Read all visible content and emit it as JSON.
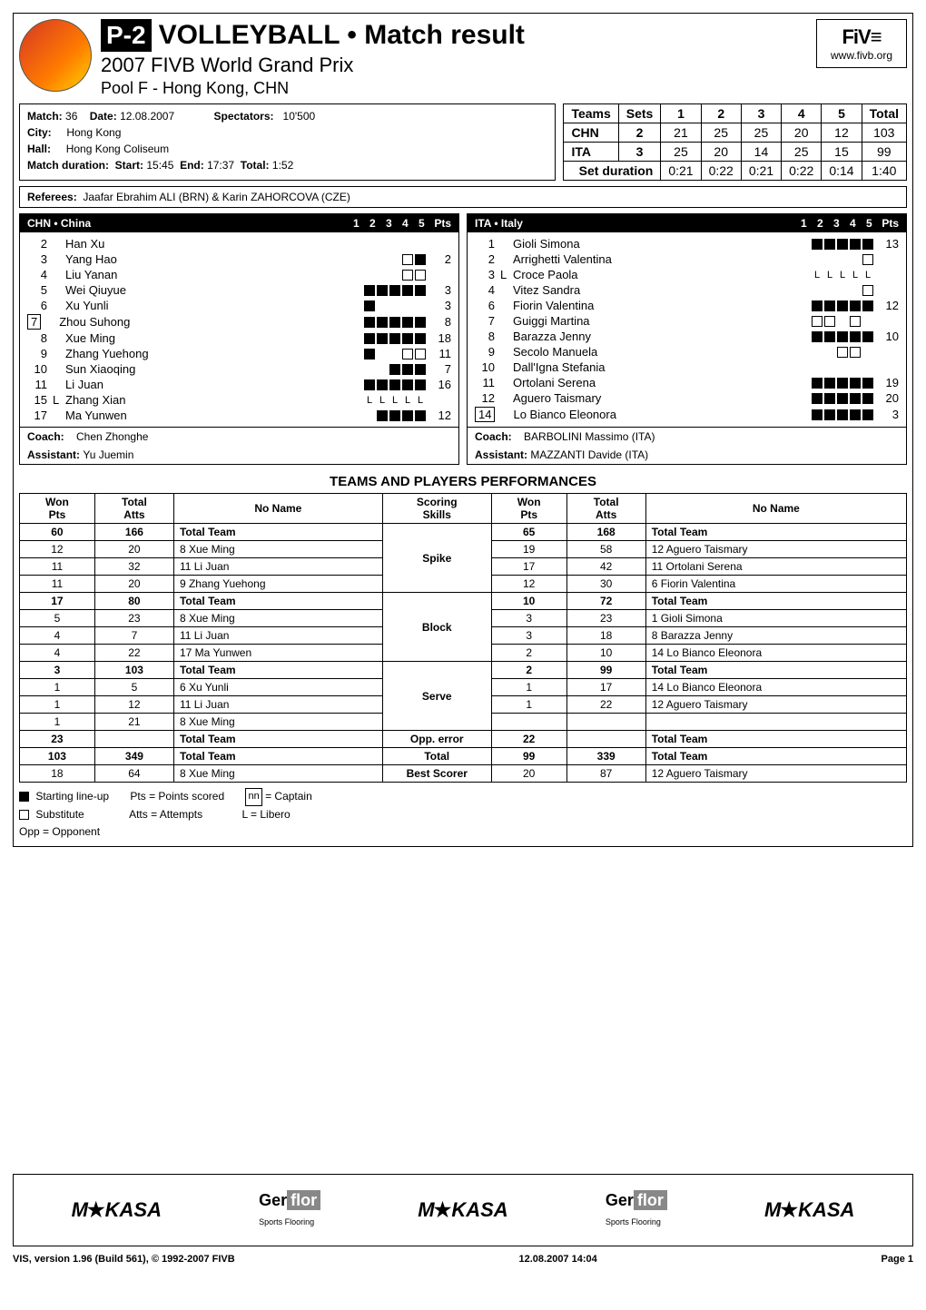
{
  "header": {
    "badge": "P-2",
    "title": "VOLLEYBALL • Match result",
    "subtitle": "2007 FIVB World Grand Prix",
    "pool": "Pool F - Hong Kong, CHN",
    "fivb_url": "www.fivb.org",
    "fivb_mark": "FiV≡"
  },
  "match_info": {
    "match_label": "Match:",
    "match_no": "36",
    "date_label": "Date:",
    "date": "12.08.2007",
    "spectators_label": "Spectators:",
    "spectators": "10'500",
    "city_label": "City:",
    "city": "Hong Kong",
    "hall_label": "Hall:",
    "hall": "Hong Kong Coliseum",
    "duration_label": "Match duration:",
    "start_label": "Start:",
    "start": "15:45",
    "end_label": "End:",
    "end": "17:37",
    "total_label": "Total:",
    "total": "1:52"
  },
  "score": {
    "cols": [
      "Teams",
      "Sets",
      "1",
      "2",
      "3",
      "4",
      "5",
      "Total"
    ],
    "rows": [
      {
        "team": "CHN",
        "sets": "2",
        "s": [
          "21",
          "25",
          "25",
          "20",
          "12"
        ],
        "total": "103"
      },
      {
        "team": "ITA",
        "sets": "3",
        "s": [
          "25",
          "20",
          "14",
          "25",
          "15"
        ],
        "total": "99"
      }
    ],
    "dur_label": "Set duration",
    "dur": [
      "0:21",
      "0:22",
      "0:21",
      "0:22",
      "0:14"
    ],
    "dur_total": "1:40"
  },
  "referees": {
    "label": "Referees:",
    "text": "Jaafar Ebrahim ALI (BRN) & Karin ZAHORCOVA (CZE)"
  },
  "team_chn": {
    "title": "CHN • China",
    "set_hdr": "1 2 3 4 5",
    "pts_hdr": "Pts",
    "players": [
      {
        "n": "2",
        "name": "Han Xu",
        "marks": [
          "",
          "",
          "",
          "",
          ""
        ],
        "pts": ""
      },
      {
        "n": "3",
        "name": "Yang Hao",
        "marks": [
          "",
          "",
          "",
          "S",
          "F"
        ],
        "pts": "2"
      },
      {
        "n": "4",
        "name": "Liu Yanan",
        "marks": [
          "",
          "",
          "",
          "S",
          "S"
        ],
        "pts": ""
      },
      {
        "n": "5",
        "name": "Wei Qiuyue",
        "marks": [
          "F",
          "F",
          "F",
          "F",
          "F"
        ],
        "pts": "3"
      },
      {
        "n": "6",
        "name": "Xu Yunli",
        "marks": [
          "F",
          "",
          "",
          "",
          ""
        ],
        "pts": "3"
      },
      {
        "n": "7",
        "captain": true,
        "name": "Zhou Suhong",
        "marks": [
          "F",
          "F",
          "F",
          "F",
          "F"
        ],
        "pts": "8"
      },
      {
        "n": "8",
        "name": "Xue Ming",
        "marks": [
          "F",
          "F",
          "F",
          "F",
          "F"
        ],
        "pts": "18"
      },
      {
        "n": "9",
        "name": "Zhang Yuehong",
        "marks": [
          "F",
          "",
          "",
          "S",
          "S"
        ],
        "pts": "11"
      },
      {
        "n": "10",
        "name": "Sun Xiaoqing",
        "marks": [
          "",
          "",
          "F",
          "F",
          "F"
        ],
        "pts": "7"
      },
      {
        "n": "11",
        "name": "Li Juan",
        "marks": [
          "F",
          "F",
          "F",
          "F",
          "F"
        ],
        "pts": "16"
      },
      {
        "n": "15",
        "lib": true,
        "name": "Zhang Xian",
        "marks": [
          "L",
          "L",
          "L",
          "L",
          "L"
        ],
        "pts": ""
      },
      {
        "n": "17",
        "name": "Ma Yunwen",
        "marks": [
          "",
          "F",
          "F",
          "F",
          "F"
        ],
        "pts": "12"
      }
    ],
    "coach_label": "Coach:",
    "coach": "Chen Zhonghe",
    "asst_label": "Assistant:",
    "asst": "Yu Juemin"
  },
  "team_ita": {
    "title": "ITA • Italy",
    "set_hdr": "1 2 3 4 5",
    "pts_hdr": "Pts",
    "players": [
      {
        "n": "1",
        "name": "Gioli Simona",
        "marks": [
          "F",
          "F",
          "F",
          "F",
          "F"
        ],
        "pts": "13"
      },
      {
        "n": "2",
        "name": "Arrighetti Valentina",
        "marks": [
          "",
          "",
          "",
          "",
          "S"
        ],
        "pts": ""
      },
      {
        "n": "3",
        "lib": true,
        "name": "Croce Paola",
        "marks": [
          "L",
          "L",
          "L",
          "L",
          "L"
        ],
        "pts": ""
      },
      {
        "n": "4",
        "name": "Vitez Sandra",
        "marks": [
          "",
          "",
          "",
          "",
          "S"
        ],
        "pts": ""
      },
      {
        "n": "6",
        "name": "Fiorin Valentina",
        "marks": [
          "F",
          "F",
          "F",
          "F",
          "F"
        ],
        "pts": "12"
      },
      {
        "n": "7",
        "name": "Guiggi Martina",
        "marks": [
          "S",
          "S",
          "",
          "S",
          ""
        ],
        "pts": ""
      },
      {
        "n": "8",
        "name": "Barazza Jenny",
        "marks": [
          "F",
          "F",
          "F",
          "F",
          "F"
        ],
        "pts": "10"
      },
      {
        "n": "9",
        "name": "Secolo Manuela",
        "marks": [
          "",
          "",
          "S",
          "S",
          ""
        ],
        "pts": ""
      },
      {
        "n": "10",
        "name": "Dall'Igna Stefania",
        "marks": [
          "",
          "",
          "",
          "",
          ""
        ],
        "pts": ""
      },
      {
        "n": "11",
        "name": "Ortolani Serena",
        "marks": [
          "F",
          "F",
          "F",
          "F",
          "F"
        ],
        "pts": "19"
      },
      {
        "n": "12",
        "name": "Aguero Taismary",
        "marks": [
          "F",
          "F",
          "F",
          "F",
          "F"
        ],
        "pts": "20"
      },
      {
        "n": "14",
        "captain": true,
        "name": "Lo Bianco Eleonora",
        "marks": [
          "F",
          "F",
          "F",
          "F",
          "F"
        ],
        "pts": "3"
      }
    ],
    "coach_label": "Coach:",
    "coach": "BARBOLINI  Massimo (ITA)",
    "asst_label": "Assistant:",
    "asst": "MAZZANTI Davide (ITA)"
  },
  "perf": {
    "title": "TEAMS AND PLAYERS PERFORMANCES",
    "cols": {
      "won": "Won\nPts",
      "atts": "Total\nAtts",
      "noname": "No Name",
      "skill": "Scoring\nSkills"
    },
    "skills": [
      {
        "skill": "Spike",
        "left": [
          {
            "w": "60",
            "a": "166",
            "n": "Total Team",
            "b": true
          },
          {
            "w": "12",
            "a": "20",
            "n": "8  Xue Ming"
          },
          {
            "w": "11",
            "a": "32",
            "n": "11  Li Juan"
          },
          {
            "w": "11",
            "a": "20",
            "n": "9  Zhang Yuehong"
          }
        ],
        "right": [
          {
            "w": "65",
            "a": "168",
            "n": "Total Team",
            "b": true
          },
          {
            "w": "19",
            "a": "58",
            "n": "12  Aguero Taismary"
          },
          {
            "w": "17",
            "a": "42",
            "n": "11  Ortolani Serena"
          },
          {
            "w": "12",
            "a": "30",
            "n": "6  Fiorin Valentina"
          }
        ]
      },
      {
        "skill": "Block",
        "left": [
          {
            "w": "17",
            "a": "80",
            "n": "Total Team",
            "b": true
          },
          {
            "w": "5",
            "a": "23",
            "n": "8  Xue Ming"
          },
          {
            "w": "4",
            "a": "7",
            "n": "11  Li Juan"
          },
          {
            "w": "4",
            "a": "22",
            "n": "17  Ma Yunwen"
          }
        ],
        "right": [
          {
            "w": "10",
            "a": "72",
            "n": "Total Team",
            "b": true
          },
          {
            "w": "3",
            "a": "23",
            "n": "1  Gioli Simona"
          },
          {
            "w": "3",
            "a": "18",
            "n": "8  Barazza Jenny"
          },
          {
            "w": "2",
            "a": "10",
            "n": "14  Lo Bianco Eleonora"
          }
        ]
      },
      {
        "skill": "Serve",
        "left": [
          {
            "w": "3",
            "a": "103",
            "n": "Total Team",
            "b": true
          },
          {
            "w": "1",
            "a": "5",
            "n": "6  Xu Yunli"
          },
          {
            "w": "1",
            "a": "12",
            "n": "11  Li Juan"
          },
          {
            "w": "1",
            "a": "21",
            "n": "8  Xue Ming"
          }
        ],
        "right": [
          {
            "w": "2",
            "a": "99",
            "n": "Total Team",
            "b": true
          },
          {
            "w": "1",
            "a": "17",
            "n": "14  Lo Bianco Eleonora"
          },
          {
            "w": "1",
            "a": "22",
            "n": "12  Aguero Taismary"
          },
          {
            "w": "",
            "a": "",
            "n": ""
          }
        ]
      },
      {
        "skill": "Opp. error",
        "left": [
          {
            "w": "23",
            "a": "",
            "n": "Total Team",
            "b": true
          }
        ],
        "right": [
          {
            "w": "22",
            "a": "",
            "n": "Total Team",
            "b": true
          }
        ]
      },
      {
        "skill": "Total",
        "left": [
          {
            "w": "103",
            "a": "349",
            "n": "Total Team",
            "b": true
          }
        ],
        "right": [
          {
            "w": "99",
            "a": "339",
            "n": "Total Team",
            "b": true
          }
        ]
      },
      {
        "skill": "Best Scorer",
        "left": [
          {
            "w": "18",
            "a": "64",
            "n": "8  Xue Ming"
          }
        ],
        "right": [
          {
            "w": "20",
            "a": "87",
            "n": "12  Aguero Taismary"
          }
        ]
      }
    ]
  },
  "legend": {
    "start": "Starting line-up",
    "sub": "Substitute",
    "opp": "Opp = Opponent",
    "pts": "Pts = Points scored",
    "atts": "Atts = Attempts",
    "captain": "= Captain",
    "captain_box": "nn",
    "libero": "L = Libero"
  },
  "sponsors": [
    "MiKASA",
    "Gerflor",
    "MiKASA",
    "Gerflor",
    "MiKASA"
  ],
  "footer": {
    "left": "VIS, version 1.96 (Build 561), © 1992-2007 FIVB",
    "center": "12.08.2007  14:04",
    "right": "Page 1"
  },
  "colors": {
    "black": "#000000",
    "white": "#ffffff"
  }
}
